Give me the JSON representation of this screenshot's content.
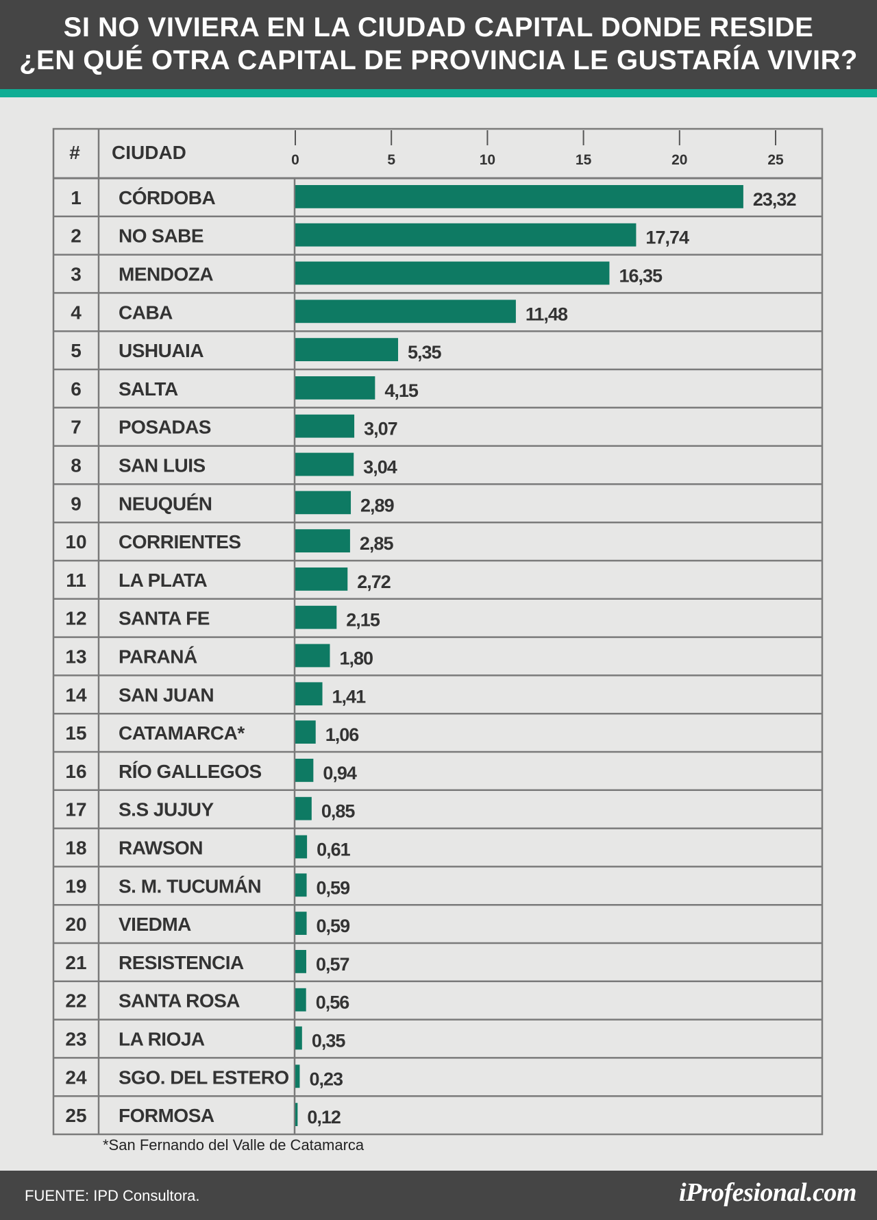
{
  "title": {
    "line1": "SI NO VIVIERA EN LA CIUDAD CAPITAL DONDE RESIDE",
    "line2": "¿EN QUÉ OTRA CAPITAL DE PROVINCIA LE GUSTARÍA VIVIR?"
  },
  "table": {
    "rank_header": "#",
    "city_header": "CIUDAD"
  },
  "colors": {
    "bar": "#0e7a63",
    "header_bg": "#454545",
    "accent": "#10ad94",
    "background": "#e7e7e6"
  },
  "chart_data": {
    "type": "bar",
    "orientation": "horizontal",
    "title": "SI NO VIVIERA EN LA CIUDAD CAPITAL DONDE RESIDE ¿EN QUÉ OTRA CAPITAL DE PROVINCIA LE GUSTARÍA VIVIR?",
    "xlim": [
      0,
      27
    ],
    "x_ticks": [
      0,
      5,
      10,
      15,
      20,
      25
    ],
    "x_tick_labels": [
      "0",
      "5",
      "10",
      "15",
      "20",
      "25"
    ],
    "ranks": [
      "1",
      "2",
      "3",
      "4",
      "5",
      "6",
      "7",
      "8",
      "9",
      "10",
      "11",
      "12",
      "13",
      "14",
      "15",
      "16",
      "17",
      "18",
      "19",
      "20",
      "21",
      "22",
      "23",
      "24",
      "25"
    ],
    "categories": [
      "CÓRDOBA",
      "NO SABE",
      "MENDOZA",
      "CABA",
      "USHUAIA",
      "SALTA",
      "POSADAS",
      "SAN LUIS",
      "NEUQUÉN",
      "CORRIENTES",
      "LA PLATA",
      "SANTA FE",
      "PARANÁ",
      "SAN JUAN",
      "CATAMARCA*",
      "RÍO GALLEGOS",
      "S.S JUJUY",
      "RAWSON",
      "S. M. TUCUMÁN",
      "VIEDMA",
      "RESISTENCIA",
      "SANTA ROSA",
      "LA RIOJA",
      "SGO. DEL ESTERO",
      "FORMOSA"
    ],
    "values": [
      23.32,
      17.74,
      16.35,
      11.48,
      5.35,
      4.15,
      3.07,
      3.04,
      2.89,
      2.85,
      2.72,
      2.15,
      1.8,
      1.41,
      1.06,
      0.94,
      0.85,
      0.61,
      0.59,
      0.59,
      0.57,
      0.56,
      0.35,
      0.23,
      0.12
    ],
    "value_labels": [
      "23,32",
      "17,74",
      "16,35",
      "11,48",
      "5,35",
      "4,15",
      "3,07",
      "3,04",
      "2,89",
      "2,85",
      "2,72",
      "2,15",
      "1,80",
      "1,41",
      "1,06",
      "0,94",
      "0,85",
      "0,61",
      "0,59",
      "0,59",
      "0,57",
      "0,56",
      "0,35",
      "0,23",
      "0,12"
    ],
    "grid": false,
    "legend": "none"
  },
  "footnote": "*San Fernando del Valle de Catamarca",
  "footer": {
    "source": "FUENTE: IPD Consultora.",
    "brand": "iProfesional.com"
  }
}
